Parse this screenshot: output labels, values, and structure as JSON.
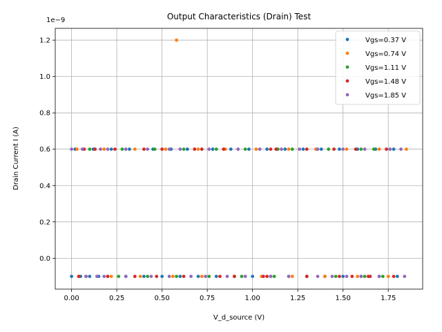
{
  "chart_data": {
    "type": "scatter",
    "title": "Output Characteristics (Drain) Test",
    "xlabel": "V_d_source (V)",
    "ylabel": "Drain Current I (A)",
    "y_offset_text": "1e−9",
    "xlim": [
      -0.09,
      1.94
    ],
    "ylim": [
      -0.17,
      1.265
    ],
    "y_scale_note": "tick values shown in units of 1e-9 A",
    "xticks": [
      0.0,
      0.25,
      0.5,
      0.75,
      1.0,
      1.25,
      1.5,
      1.75
    ],
    "xtick_labels": [
      "0.00",
      "0.25",
      "0.50",
      "0.75",
      "1.00",
      "1.25",
      "1.50",
      "1.75"
    ],
    "yticks": [
      0.0,
      0.2,
      0.4,
      0.6,
      0.8,
      1.0,
      1.2
    ],
    "ytick_labels": [
      "0.0",
      "0.2",
      "0.4",
      "0.6",
      "0.8",
      "1.0",
      "1.2"
    ],
    "grid": true,
    "legend_position": "top-right",
    "series": [
      {
        "name": "Vgs=0.37 V",
        "color": "#1f77b4",
        "points": [
          [
            0.0,
            -0.1
          ],
          [
            0.05,
            -0.1
          ],
          [
            0.1,
            -0.1
          ],
          [
            0.15,
            -0.1
          ],
          [
            0.2,
            -0.1
          ],
          [
            0.3,
            -0.1
          ],
          [
            0.4,
            -0.1
          ],
          [
            0.5,
            -0.1
          ],
          [
            0.6,
            -0.1
          ],
          [
            0.7,
            -0.1
          ],
          [
            0.8,
            -0.1
          ],
          [
            0.9,
            -0.1
          ],
          [
            1.0,
            -0.1
          ],
          [
            1.1,
            -0.1
          ],
          [
            1.2,
            -0.1
          ],
          [
            1.3,
            -0.1
          ],
          [
            1.4,
            -0.1
          ],
          [
            1.5,
            -0.1
          ],
          [
            1.6,
            -0.1
          ],
          [
            1.7,
            -0.1
          ],
          [
            1.8,
            -0.1
          ],
          [
            0.02,
            0.6
          ],
          [
            0.12,
            0.6
          ],
          [
            0.22,
            0.6
          ],
          [
            0.32,
            0.6
          ],
          [
            0.45,
            0.6
          ],
          [
            0.55,
            0.6
          ],
          [
            0.64,
            0.6
          ],
          [
            0.78,
            0.6
          ],
          [
            0.88,
            0.6
          ],
          [
            0.98,
            0.6
          ],
          [
            1.08,
            0.6
          ],
          [
            1.18,
            0.6
          ],
          [
            1.28,
            0.6
          ],
          [
            1.38,
            0.6
          ],
          [
            1.48,
            0.6
          ],
          [
            1.58,
            0.6
          ],
          [
            1.68,
            0.6
          ],
          [
            1.78,
            0.6
          ]
        ]
      },
      {
        "name": "Vgs=0.74 V",
        "color": "#ff7f0e",
        "points": [
          [
            0.58,
            1.2
          ],
          [
            1.85,
            0.6
          ],
          [
            0.03,
            0.6
          ],
          [
            0.18,
            0.6
          ],
          [
            0.35,
            0.6
          ],
          [
            0.52,
            0.6
          ],
          [
            0.7,
            0.6
          ],
          [
            0.85,
            0.6
          ],
          [
            1.02,
            0.6
          ],
          [
            1.2,
            0.6
          ],
          [
            1.35,
            0.6
          ],
          [
            1.52,
            0.6
          ],
          [
            1.7,
            0.6
          ],
          [
            0.04,
            -0.1
          ],
          [
            0.22,
            -0.1
          ],
          [
            0.38,
            -0.1
          ],
          [
            0.56,
            -0.1
          ],
          [
            0.72,
            -0.1
          ],
          [
            0.9,
            -0.1
          ],
          [
            1.05,
            -0.1
          ],
          [
            1.22,
            -0.1
          ],
          [
            1.4,
            -0.1
          ],
          [
            1.58,
            -0.1
          ],
          [
            1.75,
            -0.1
          ]
        ]
      },
      {
        "name": "Vgs=1.11 V",
        "color": "#2ca02c",
        "points": [
          [
            0.26,
            -0.1
          ],
          [
            0.42,
            -0.1
          ],
          [
            0.58,
            -0.1
          ],
          [
            0.76,
            -0.1
          ],
          [
            0.94,
            -0.1
          ],
          [
            1.12,
            -0.1
          ],
          [
            1.3,
            -0.1
          ],
          [
            1.46,
            -0.1
          ],
          [
            1.62,
            -0.1
          ],
          [
            1.72,
            -0.1
          ],
          [
            0.1,
            0.6
          ],
          [
            0.28,
            0.6
          ],
          [
            0.46,
            0.6
          ],
          [
            0.62,
            0.6
          ],
          [
            0.8,
            0.6
          ],
          [
            0.96,
            0.6
          ],
          [
            1.14,
            0.6
          ],
          [
            1.22,
            0.6
          ],
          [
            1.42,
            0.6
          ],
          [
            1.6,
            0.6
          ],
          [
            1.67,
            0.6
          ]
        ]
      },
      {
        "name": "Vgs=1.48 V",
        "color": "#d62728",
        "points": [
          [
            0.04,
            -0.1
          ],
          [
            0.08,
            -0.1
          ],
          [
            0.2,
            -0.1
          ],
          [
            0.35,
            -0.1
          ],
          [
            0.47,
            -0.1
          ],
          [
            0.62,
            -0.1
          ],
          [
            0.82,
            -0.1
          ],
          [
            0.9,
            -0.1
          ],
          [
            1.06,
            -0.1
          ],
          [
            1.08,
            -0.1
          ],
          [
            1.3,
            -0.1
          ],
          [
            1.48,
            -0.1
          ],
          [
            1.55,
            -0.1
          ],
          [
            1.64,
            -0.1
          ],
          [
            1.65,
            -0.1
          ],
          [
            1.78,
            -0.1
          ],
          [
            0.07,
            0.6
          ],
          [
            0.13,
            0.6
          ],
          [
            0.24,
            0.6
          ],
          [
            0.4,
            0.6
          ],
          [
            0.5,
            0.6
          ],
          [
            0.68,
            0.6
          ],
          [
            0.72,
            0.6
          ],
          [
            0.84,
            0.6
          ],
          [
            1.1,
            0.6
          ],
          [
            1.13,
            0.6
          ],
          [
            1.3,
            0.6
          ],
          [
            1.45,
            0.6
          ],
          [
            1.57,
            0.6
          ],
          [
            1.74,
            0.6
          ]
        ]
      },
      {
        "name": "Vgs=1.85 V",
        "color": "#9467bd",
        "points": [
          [
            0.0,
            0.6
          ],
          [
            0.06,
            0.6
          ],
          [
            0.16,
            0.6
          ],
          [
            0.2,
            0.6
          ],
          [
            0.3,
            0.6
          ],
          [
            0.42,
            0.6
          ],
          [
            0.54,
            0.6
          ],
          [
            0.6,
            0.6
          ],
          [
            0.76,
            0.6
          ],
          [
            0.92,
            0.6
          ],
          [
            1.04,
            0.6
          ],
          [
            1.16,
            0.6
          ],
          [
            1.26,
            0.6
          ],
          [
            1.36,
            0.6
          ],
          [
            1.5,
            0.6
          ],
          [
            1.62,
            0.6
          ],
          [
            1.76,
            0.6
          ],
          [
            1.82,
            0.6
          ],
          [
            0.08,
            -0.1
          ],
          [
            0.14,
            -0.1
          ],
          [
            0.18,
            -0.1
          ],
          [
            0.3,
            -0.1
          ],
          [
            0.44,
            -0.1
          ],
          [
            0.54,
            -0.1
          ],
          [
            0.66,
            -0.1
          ],
          [
            0.74,
            -0.1
          ],
          [
            0.86,
            -0.1
          ],
          [
            0.96,
            -0.1
          ],
          [
            1.1,
            -0.1
          ],
          [
            1.2,
            -0.1
          ],
          [
            1.36,
            -0.1
          ],
          [
            1.44,
            -0.1
          ],
          [
            1.52,
            -0.1
          ],
          [
            1.6,
            -0.1
          ],
          [
            1.7,
            -0.1
          ],
          [
            1.84,
            -0.1
          ]
        ]
      }
    ]
  }
}
